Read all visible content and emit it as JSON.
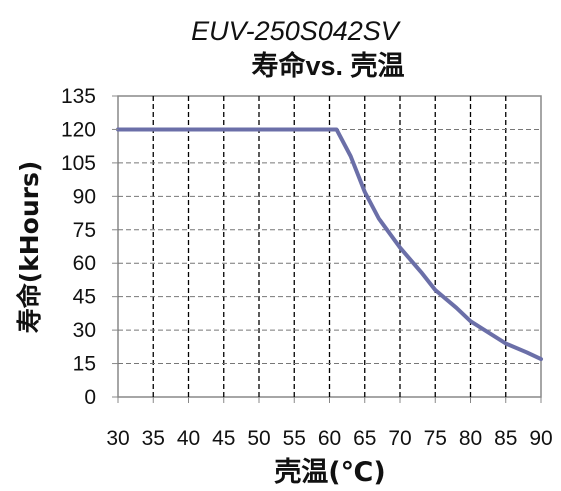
{
  "chart_data": {
    "type": "line",
    "title": "EUV-250S042SV",
    "subtitle": "寿命vs. 壳温",
    "xlabel": "壳温(℃)",
    "ylabel": "寿命(kHours)",
    "xlim": [
      30,
      90
    ],
    "ylim": [
      0,
      135
    ],
    "x_ticks": [
      "30",
      "35",
      "40",
      "45",
      "50",
      "55",
      "60",
      "65",
      "70",
      "75",
      "80",
      "85",
      "90"
    ],
    "y_ticks": [
      "0",
      "15",
      "30",
      "45",
      "60",
      "75",
      "90",
      "105",
      "120",
      "135"
    ],
    "grid": true,
    "legend": "none",
    "colors": {
      "line": "#6b6fa8",
      "grid": "#000000",
      "axis": "#888888"
    },
    "series": [
      {
        "x": [
          30,
          35,
          40,
          45,
          50,
          55,
          60,
          61,
          63,
          65,
          67,
          70,
          73,
          75,
          78,
          80,
          83,
          85,
          88,
          90
        ],
        "y": [
          120,
          120,
          120,
          120,
          120,
          120,
          120,
          120,
          108,
          92,
          80,
          67,
          56,
          48,
          40,
          34,
          28,
          24,
          20,
          17
        ]
      }
    ]
  }
}
